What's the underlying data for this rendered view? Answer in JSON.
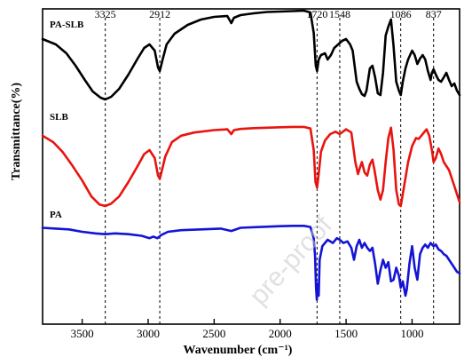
{
  "chart_data": {
    "type": "line",
    "xlabel": "Wavenumber (cm⁻¹)",
    "ylabel": "Transmittance(%)",
    "xlim": [
      3800,
      640
    ],
    "x_reversed": true,
    "x_ticks": [
      3500,
      3000,
      2500,
      2000,
      1500,
      1000
    ],
    "y_ticks_shown": false,
    "grid": false,
    "reference_lines": [
      3325,
      2912,
      1720,
      1548,
      1086,
      837
    ],
    "reference_line_style": "dashed",
    "watermark": "pre-proof",
    "series": [
      {
        "name": "PA-SLB",
        "color": "#000000",
        "points": [
          [
            3800,
            0.68
          ],
          [
            3700,
            0.62
          ],
          [
            3620,
            0.52
          ],
          [
            3550,
            0.38
          ],
          [
            3480,
            0.22
          ],
          [
            3420,
            0.09
          ],
          [
            3360,
            0.02
          ],
          [
            3325,
            0.0
          ],
          [
            3280,
            0.03
          ],
          [
            3220,
            0.12
          ],
          [
            3150,
            0.28
          ],
          [
            3080,
            0.46
          ],
          [
            3030,
            0.58
          ],
          [
            2990,
            0.62
          ],
          [
            2950,
            0.55
          ],
          [
            2925,
            0.36
          ],
          [
            2912,
            0.32
          ],
          [
            2890,
            0.45
          ],
          [
            2860,
            0.62
          ],
          [
            2800,
            0.74
          ],
          [
            2700,
            0.84
          ],
          [
            2600,
            0.9
          ],
          [
            2500,
            0.93
          ],
          [
            2400,
            0.94
          ],
          [
            2370,
            0.86
          ],
          [
            2350,
            0.92
          ],
          [
            2300,
            0.95
          ],
          [
            2200,
            0.97
          ],
          [
            2100,
            0.985
          ],
          [
            2000,
            0.99
          ],
          [
            1900,
            0.995
          ],
          [
            1820,
            1.0
          ],
          [
            1770,
            0.98
          ],
          [
            1745,
            0.75
          ],
          [
            1730,
            0.38
          ],
          [
            1720,
            0.32
          ],
          [
            1708,
            0.45
          ],
          [
            1690,
            0.5
          ],
          [
            1660,
            0.52
          ],
          [
            1640,
            0.45
          ],
          [
            1615,
            0.5
          ],
          [
            1590,
            0.58
          ],
          [
            1560,
            0.62
          ],
          [
            1530,
            0.66
          ],
          [
            1500,
            0.68
          ],
          [
            1470,
            0.62
          ],
          [
            1450,
            0.55
          ],
          [
            1420,
            0.2
          ],
          [
            1400,
            0.12
          ],
          [
            1380,
            0.06
          ],
          [
            1360,
            0.04
          ],
          [
            1345,
            0.1
          ],
          [
            1320,
            0.35
          ],
          [
            1300,
            0.38
          ],
          [
            1280,
            0.25
          ],
          [
            1260,
            0.07
          ],
          [
            1240,
            0.05
          ],
          [
            1220,
            0.3
          ],
          [
            1200,
            0.72
          ],
          [
            1180,
            0.82
          ],
          [
            1160,
            0.9
          ],
          [
            1140,
            0.6
          ],
          [
            1120,
            0.2
          ],
          [
            1100,
            0.1
          ],
          [
            1086,
            0.05
          ],
          [
            1070,
            0.2
          ],
          [
            1050,
            0.35
          ],
          [
            1030,
            0.45
          ],
          [
            1000,
            0.55
          ],
          [
            980,
            0.5
          ],
          [
            960,
            0.4
          ],
          [
            940,
            0.46
          ],
          [
            920,
            0.5
          ],
          [
            900,
            0.45
          ],
          [
            880,
            0.32
          ],
          [
            860,
            0.22
          ],
          [
            850,
            0.3
          ],
          [
            837,
            0.34
          ],
          [
            820,
            0.28
          ],
          [
            800,
            0.22
          ],
          [
            780,
            0.2
          ],
          [
            760,
            0.25
          ],
          [
            740,
            0.3
          ],
          [
            720,
            0.22
          ],
          [
            700,
            0.15
          ],
          [
            680,
            0.18
          ],
          [
            660,
            0.1
          ],
          [
            640,
            0.05
          ]
        ]
      },
      {
        "name": "SLB",
        "color": "#e8140f",
        "points": [
          [
            3800,
            0.88
          ],
          [
            3720,
            0.8
          ],
          [
            3650,
            0.68
          ],
          [
            3580,
            0.52
          ],
          [
            3500,
            0.32
          ],
          [
            3430,
            0.12
          ],
          [
            3370,
            0.02
          ],
          [
            3325,
            0.0
          ],
          [
            3280,
            0.03
          ],
          [
            3220,
            0.12
          ],
          [
            3150,
            0.3
          ],
          [
            3080,
            0.5
          ],
          [
            3030,
            0.65
          ],
          [
            2990,
            0.7
          ],
          [
            2950,
            0.6
          ],
          [
            2925,
            0.38
          ],
          [
            2912,
            0.34
          ],
          [
            2895,
            0.45
          ],
          [
            2870,
            0.62
          ],
          [
            2820,
            0.8
          ],
          [
            2750,
            0.88
          ],
          [
            2650,
            0.92
          ],
          [
            2500,
            0.95
          ],
          [
            2400,
            0.96
          ],
          [
            2370,
            0.9
          ],
          [
            2350,
            0.95
          ],
          [
            2300,
            0.965
          ],
          [
            2200,
            0.975
          ],
          [
            2000,
            0.985
          ],
          [
            1900,
            0.99
          ],
          [
            1820,
            0.99
          ],
          [
            1770,
            0.97
          ],
          [
            1745,
            0.7
          ],
          [
            1732,
            0.3
          ],
          [
            1720,
            0.23
          ],
          [
            1708,
            0.4
          ],
          [
            1690,
            0.68
          ],
          [
            1660,
            0.82
          ],
          [
            1620,
            0.9
          ],
          [
            1580,
            0.93
          ],
          [
            1548,
            0.9
          ],
          [
            1500,
            0.96
          ],
          [
            1460,
            0.92
          ],
          [
            1430,
            0.55
          ],
          [
            1410,
            0.4
          ],
          [
            1395,
            0.48
          ],
          [
            1380,
            0.55
          ],
          [
            1360,
            0.42
          ],
          [
            1340,
            0.38
          ],
          [
            1320,
            0.52
          ],
          [
            1300,
            0.58
          ],
          [
            1285,
            0.45
          ],
          [
            1260,
            0.2
          ],
          [
            1240,
            0.08
          ],
          [
            1220,
            0.2
          ],
          [
            1200,
            0.55
          ],
          [
            1180,
            0.85
          ],
          [
            1160,
            0.98
          ],
          [
            1140,
            0.7
          ],
          [
            1120,
            0.2
          ],
          [
            1100,
            0.02
          ],
          [
            1086,
            0.0
          ],
          [
            1070,
            0.15
          ],
          [
            1050,
            0.35
          ],
          [
            1030,
            0.55
          ],
          [
            1000,
            0.75
          ],
          [
            970,
            0.85
          ],
          [
            950,
            0.84
          ],
          [
            930,
            0.88
          ],
          [
            910,
            0.92
          ],
          [
            890,
            0.96
          ],
          [
            870,
            0.88
          ],
          [
            850,
            0.7
          ],
          [
            837,
            0.55
          ],
          [
            820,
            0.6
          ],
          [
            800,
            0.72
          ],
          [
            780,
            0.65
          ],
          [
            760,
            0.55
          ],
          [
            740,
            0.5
          ],
          [
            720,
            0.45
          ],
          [
            700,
            0.35
          ],
          [
            680,
            0.25
          ],
          [
            660,
            0.15
          ],
          [
            640,
            0.05
          ]
        ]
      },
      {
        "name": "PA",
        "color": "#1313d6",
        "points": [
          [
            3800,
            0.95
          ],
          [
            3700,
            0.94
          ],
          [
            3600,
            0.93
          ],
          [
            3500,
            0.9
          ],
          [
            3400,
            0.88
          ],
          [
            3325,
            0.87
          ],
          [
            3250,
            0.88
          ],
          [
            3150,
            0.87
          ],
          [
            3050,
            0.85
          ],
          [
            2990,
            0.82
          ],
          [
            2960,
            0.84
          ],
          [
            2930,
            0.82
          ],
          [
            2900,
            0.86
          ],
          [
            2850,
            0.9
          ],
          [
            2750,
            0.92
          ],
          [
            2600,
            0.93
          ],
          [
            2450,
            0.94
          ],
          [
            2370,
            0.91
          ],
          [
            2300,
            0.95
          ],
          [
            2150,
            0.96
          ],
          [
            2000,
            0.97
          ],
          [
            1900,
            0.975
          ],
          [
            1820,
            0.975
          ],
          [
            1770,
            0.96
          ],
          [
            1745,
            0.82
          ],
          [
            1735,
            0.6
          ],
          [
            1728,
            0.2
          ],
          [
            1722,
            0.05
          ],
          [
            1716,
            0.25
          ],
          [
            1708,
            0.1
          ],
          [
            1700,
            0.55
          ],
          [
            1680,
            0.72
          ],
          [
            1640,
            0.8
          ],
          [
            1600,
            0.76
          ],
          [
            1570,
            0.82
          ],
          [
            1548,
            0.8
          ],
          [
            1520,
            0.76
          ],
          [
            1490,
            0.78
          ],
          [
            1460,
            0.7
          ],
          [
            1440,
            0.55
          ],
          [
            1420,
            0.72
          ],
          [
            1400,
            0.8
          ],
          [
            1380,
            0.7
          ],
          [
            1360,
            0.76
          ],
          [
            1340,
            0.7
          ],
          [
            1320,
            0.66
          ],
          [
            1300,
            0.7
          ],
          [
            1280,
            0.5
          ],
          [
            1260,
            0.25
          ],
          [
            1240,
            0.42
          ],
          [
            1220,
            0.55
          ],
          [
            1200,
            0.45
          ],
          [
            1180,
            0.52
          ],
          [
            1160,
            0.28
          ],
          [
            1140,
            0.3
          ],
          [
            1120,
            0.45
          ],
          [
            1100,
            0.35
          ],
          [
            1086,
            0.2
          ],
          [
            1070,
            0.28
          ],
          [
            1050,
            0.1
          ],
          [
            1040,
            0.18
          ],
          [
            1020,
            0.5
          ],
          [
            1000,
            0.72
          ],
          [
            980,
            0.45
          ],
          [
            960,
            0.3
          ],
          [
            940,
            0.62
          ],
          [
            920,
            0.7
          ],
          [
            900,
            0.74
          ],
          [
            880,
            0.7
          ],
          [
            860,
            0.76
          ],
          [
            837,
            0.72
          ],
          [
            820,
            0.74
          ],
          [
            800,
            0.68
          ],
          [
            780,
            0.66
          ],
          [
            760,
            0.62
          ],
          [
            740,
            0.6
          ],
          [
            720,
            0.55
          ],
          [
            700,
            0.5
          ],
          [
            680,
            0.45
          ],
          [
            660,
            0.4
          ],
          [
            640,
            0.38
          ]
        ]
      }
    ]
  }
}
